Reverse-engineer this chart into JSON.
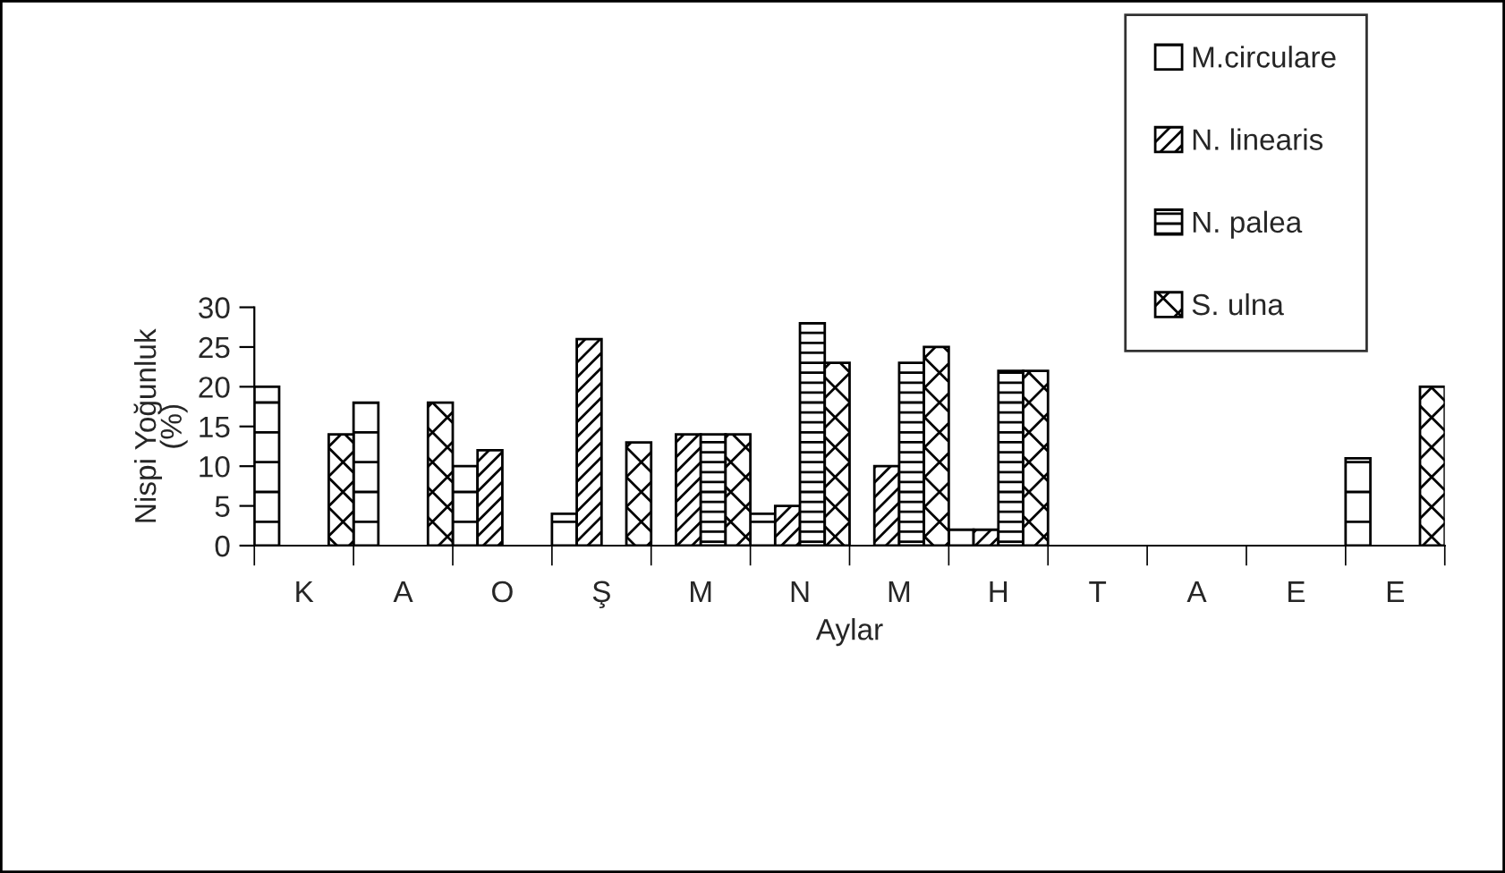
{
  "chart_data": {
    "type": "bar",
    "xlabel": "Aylar",
    "ylabel": "Nispi Yoğunluk\n(%)",
    "categories": [
      "K",
      "A",
      "O",
      "Ş",
      "M",
      "N",
      "M",
      "H",
      "T",
      "A",
      "E",
      "E"
    ],
    "series": [
      {
        "name": "M.circulare",
        "color": "#000000",
        "values": [
          20,
          18,
          10,
          4,
          null,
          4,
          null,
          2,
          null,
          null,
          null,
          11
        ]
      },
      {
        "name": "N. linearis",
        "color": "#000000",
        "values": [
          null,
          null,
          12,
          26,
          14,
          5,
          10,
          2,
          null,
          null,
          null,
          null
        ]
      },
      {
        "name": "N. palea",
        "color": "#000000",
        "values": [
          null,
          null,
          null,
          null,
          14,
          28,
          23,
          22,
          null,
          null,
          null,
          null
        ]
      },
      {
        "name": "S. ulna",
        "color": "#000000",
        "values": [
          14,
          18,
          null,
          13,
          14,
          23,
          25,
          22,
          null,
          null,
          null,
          20
        ]
      }
    ],
    "ylim": [
      0,
      30
    ],
    "yticks": [
      0,
      5,
      10,
      15,
      20,
      25,
      30
    ],
    "grid": false,
    "legend": "top right"
  }
}
